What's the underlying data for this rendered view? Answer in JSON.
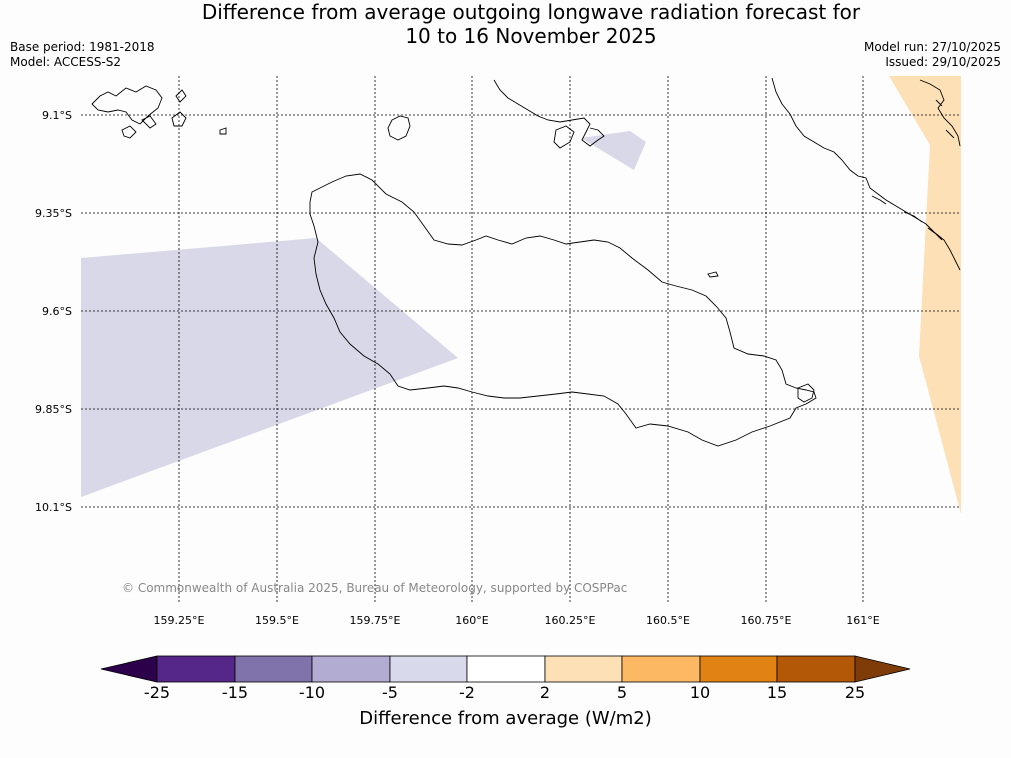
{
  "title": {
    "line1": "Difference from average outgoing longwave radiation forecast for",
    "line2": "10 to 16 November 2025"
  },
  "meta": {
    "base_period": "Base period: 1981-2018",
    "model": "Model: ACCESS-S2",
    "model_run": "Model run: 27/10/2025",
    "issued": "Issued: 29/10/2025"
  },
  "map": {
    "lat_labels": [
      "9.1°S",
      "9.35°S",
      "9.6°S",
      "9.85°S",
      "10.1°S"
    ],
    "lon_labels": [
      "159.25°E",
      "159.5°E",
      "159.75°E",
      "160°E",
      "160.25°E",
      "160.5°E",
      "160.75°E",
      "161°E"
    ],
    "copyright": "© Commonwealth of Australia 2025, Bureau of Meteorology, supported by COSPPac",
    "fill_colors": {
      "neg_small": "#d8d8e9",
      "pos_small": "#fee0b6"
    }
  },
  "colorbar": {
    "title": "Difference from average (W/m2)",
    "labels": [
      "-25",
      "-15",
      "-10",
      "-5",
      "-2",
      "2",
      "5",
      "10",
      "15",
      "25"
    ],
    "colors": [
      "#2d004b",
      "#542788",
      "#8073ac",
      "#b2abd2",
      "#d8daeb",
      "#ffffff",
      "#fee0b6",
      "#fdb863",
      "#e08214",
      "#b35806",
      "#7f3b08"
    ]
  }
}
